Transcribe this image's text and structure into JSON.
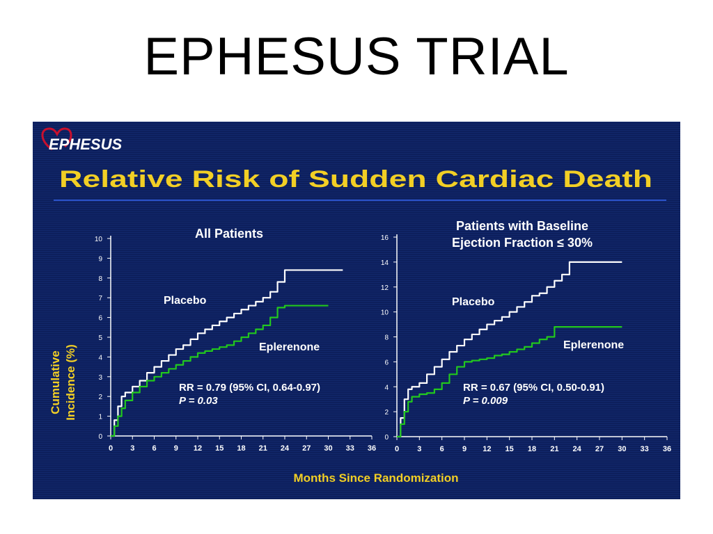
{
  "page_title": "EPHESUS TRIAL",
  "logo_text": "EPHESUS",
  "slide_heading": "Relative Risk of Sudden Cardiac Death",
  "y_axis_label_line1": "Cumulative",
  "y_axis_label_line2": "Incidence (%)",
  "x_axis_label": "Months Since Randomization",
  "colors": {
    "background": "#0d1f5c",
    "heading": "#f2cf25",
    "placebo": "#ffffff",
    "eplerenone": "#22c81e",
    "axis": "#ffffff",
    "divider": "#2a52c8",
    "logo_heart": "#c8102e"
  },
  "chart_data": [
    {
      "type": "line",
      "title": "All Patients",
      "title_line2": "",
      "xlim": [
        0,
        36
      ],
      "ylim": [
        0,
        10
      ],
      "x_ticks": [
        0,
        3,
        6,
        9,
        12,
        15,
        18,
        21,
        24,
        27,
        30,
        33,
        36
      ],
      "y_ticks": [
        0,
        1,
        2,
        3,
        4,
        5,
        6,
        7,
        8,
        9,
        10
      ],
      "annotation_line1": "RR = 0.79 (95% CI, 0.64-0.97)",
      "annotation_line2": "P = 0.03",
      "series": [
        {
          "name": "Placebo",
          "x": [
            0,
            0.5,
            1,
            1.5,
            2,
            3,
            4,
            5,
            6,
            7,
            8,
            9,
            10,
            11,
            12,
            13,
            14,
            15,
            16,
            17,
            18,
            19,
            20,
            21,
            22,
            23,
            24,
            25,
            26,
            27,
            28,
            29,
            30,
            31,
            32
          ],
          "values": [
            0,
            0.8,
            1.5,
            2.0,
            2.2,
            2.5,
            2.8,
            3.2,
            3.5,
            3.8,
            4.1,
            4.4,
            4.6,
            4.9,
            5.2,
            5.4,
            5.6,
            5.8,
            6.0,
            6.2,
            6.4,
            6.6,
            6.8,
            7.0,
            7.3,
            7.8,
            8.4,
            8.4,
            8.4,
            8.4,
            8.4,
            8.4,
            8.4,
            8.4,
            8.4
          ]
        },
        {
          "name": "Eplerenone",
          "x": [
            0,
            0.5,
            1,
            1.5,
            2,
            3,
            4,
            5,
            6,
            7,
            8,
            9,
            10,
            11,
            12,
            13,
            14,
            15,
            16,
            17,
            18,
            19,
            20,
            21,
            22,
            23,
            24,
            25,
            26,
            27,
            28,
            29,
            30
          ],
          "values": [
            0,
            0.5,
            1.0,
            1.4,
            1.8,
            2.2,
            2.5,
            2.8,
            3.0,
            3.2,
            3.4,
            3.6,
            3.8,
            4.0,
            4.2,
            4.3,
            4.4,
            4.5,
            4.6,
            4.8,
            5.0,
            5.2,
            5.4,
            5.6,
            6.0,
            6.5,
            6.6,
            6.6,
            6.6,
            6.6,
            6.6,
            6.6,
            6.6
          ]
        }
      ]
    },
    {
      "type": "line",
      "title": "Patients with Baseline",
      "title_line2": "Ejection Fraction ≤ 30%",
      "xlim": [
        0,
        36
      ],
      "ylim": [
        0,
        16
      ],
      "x_ticks": [
        0,
        3,
        6,
        9,
        12,
        15,
        18,
        21,
        24,
        27,
        30,
        33,
        36
      ],
      "y_ticks": [
        0,
        2,
        4,
        6,
        8,
        10,
        12,
        14,
        16
      ],
      "annotation_line1": "RR = 0.67 (95% CI,  0.50-0.91)",
      "annotation_line2": "P = 0.009",
      "series": [
        {
          "name": "Placebo",
          "x": [
            0,
            0.5,
            1,
            1.5,
            2,
            3,
            4,
            5,
            6,
            7,
            8,
            9,
            10,
            11,
            12,
            13,
            14,
            15,
            16,
            17,
            18,
            19,
            20,
            21,
            22,
            23,
            24,
            25,
            26,
            27,
            28,
            29,
            30
          ],
          "values": [
            0,
            1.5,
            3.0,
            3.8,
            4.0,
            4.3,
            5.0,
            5.6,
            6.2,
            6.8,
            7.3,
            7.8,
            8.2,
            8.6,
            9.0,
            9.3,
            9.6,
            10.0,
            10.4,
            10.8,
            11.3,
            11.5,
            12.0,
            12.5,
            13.0,
            14.0,
            14.0,
            14.0,
            14.0,
            14.0,
            14.0,
            14.0,
            14.0
          ]
        },
        {
          "name": "Eplerenone",
          "x": [
            0,
            0.5,
            1,
            1.5,
            2,
            3,
            4,
            5,
            6,
            7,
            8,
            9,
            10,
            11,
            12,
            13,
            14,
            15,
            16,
            17,
            18,
            19,
            20,
            21,
            22,
            23,
            24,
            25,
            26,
            27,
            28,
            29,
            30
          ],
          "values": [
            0,
            1.0,
            2.0,
            2.8,
            3.2,
            3.4,
            3.5,
            3.8,
            4.3,
            5.0,
            5.6,
            6.0,
            6.1,
            6.2,
            6.3,
            6.5,
            6.6,
            6.8,
            7.0,
            7.2,
            7.5,
            7.8,
            8.0,
            8.8,
            8.8,
            8.8,
            8.8,
            8.8,
            8.8,
            8.8,
            8.8,
            8.8,
            8.8
          ]
        }
      ]
    }
  ]
}
